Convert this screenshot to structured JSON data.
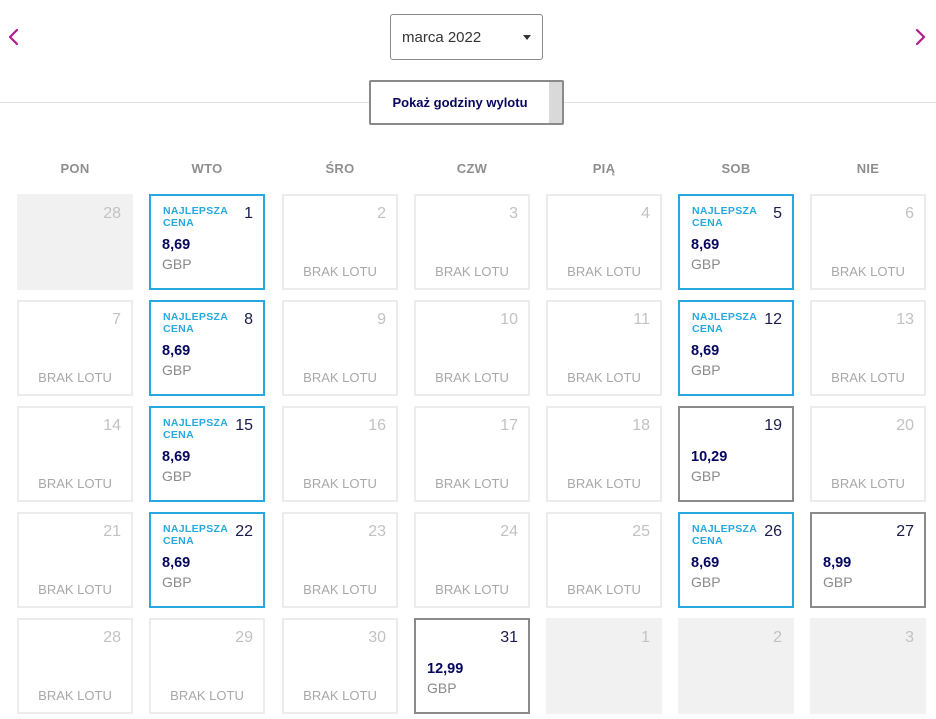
{
  "header": {
    "month_selected": "marca 2022",
    "show_times_label": "Pokaż godziny wylotu"
  },
  "icons": {
    "prev": "chevron-left-icon",
    "next": "chevron-right-icon",
    "dropdown": "caret-down-icon"
  },
  "colors": {
    "accent": "#b31b8d",
    "best_border": "#26a9e0",
    "price_text": "#06065e"
  },
  "weekdays": [
    "PON",
    "WTO",
    "ŚRO",
    "CZW",
    "PIĄ",
    "SOB",
    "NIE"
  ],
  "labels": {
    "best": "NAJLEPSZA CENA",
    "no_flight": "BRAK LOTU",
    "currency": "GBP"
  },
  "days": [
    {
      "day": "28",
      "status": "outside"
    },
    {
      "day": "1",
      "status": "best",
      "price": "8,69"
    },
    {
      "day": "2",
      "status": "none"
    },
    {
      "day": "3",
      "status": "none"
    },
    {
      "day": "4",
      "status": "none"
    },
    {
      "day": "5",
      "status": "best",
      "price": "8,69"
    },
    {
      "day": "6",
      "status": "none"
    },
    {
      "day": "7",
      "status": "none"
    },
    {
      "day": "8",
      "status": "best",
      "price": "8,69"
    },
    {
      "day": "9",
      "status": "none"
    },
    {
      "day": "10",
      "status": "none"
    },
    {
      "day": "11",
      "status": "none"
    },
    {
      "day": "12",
      "status": "best",
      "price": "8,69"
    },
    {
      "day": "13",
      "status": "none"
    },
    {
      "day": "14",
      "status": "none"
    },
    {
      "day": "15",
      "status": "best",
      "price": "8,69"
    },
    {
      "day": "16",
      "status": "none"
    },
    {
      "day": "17",
      "status": "none"
    },
    {
      "day": "18",
      "status": "none"
    },
    {
      "day": "19",
      "status": "priced",
      "price": "10,29"
    },
    {
      "day": "20",
      "status": "none"
    },
    {
      "day": "21",
      "status": "none"
    },
    {
      "day": "22",
      "status": "best",
      "price": "8,69"
    },
    {
      "day": "23",
      "status": "none"
    },
    {
      "day": "24",
      "status": "none"
    },
    {
      "day": "25",
      "status": "none"
    },
    {
      "day": "26",
      "status": "best",
      "price": "8,69"
    },
    {
      "day": "27",
      "status": "priced",
      "price": "8,99"
    },
    {
      "day": "28",
      "status": "none"
    },
    {
      "day": "29",
      "status": "none"
    },
    {
      "day": "30",
      "status": "none"
    },
    {
      "day": "31",
      "status": "priced",
      "price": "12,99"
    },
    {
      "day": "1",
      "status": "outside"
    },
    {
      "day": "2",
      "status": "outside"
    },
    {
      "day": "3",
      "status": "outside"
    }
  ]
}
